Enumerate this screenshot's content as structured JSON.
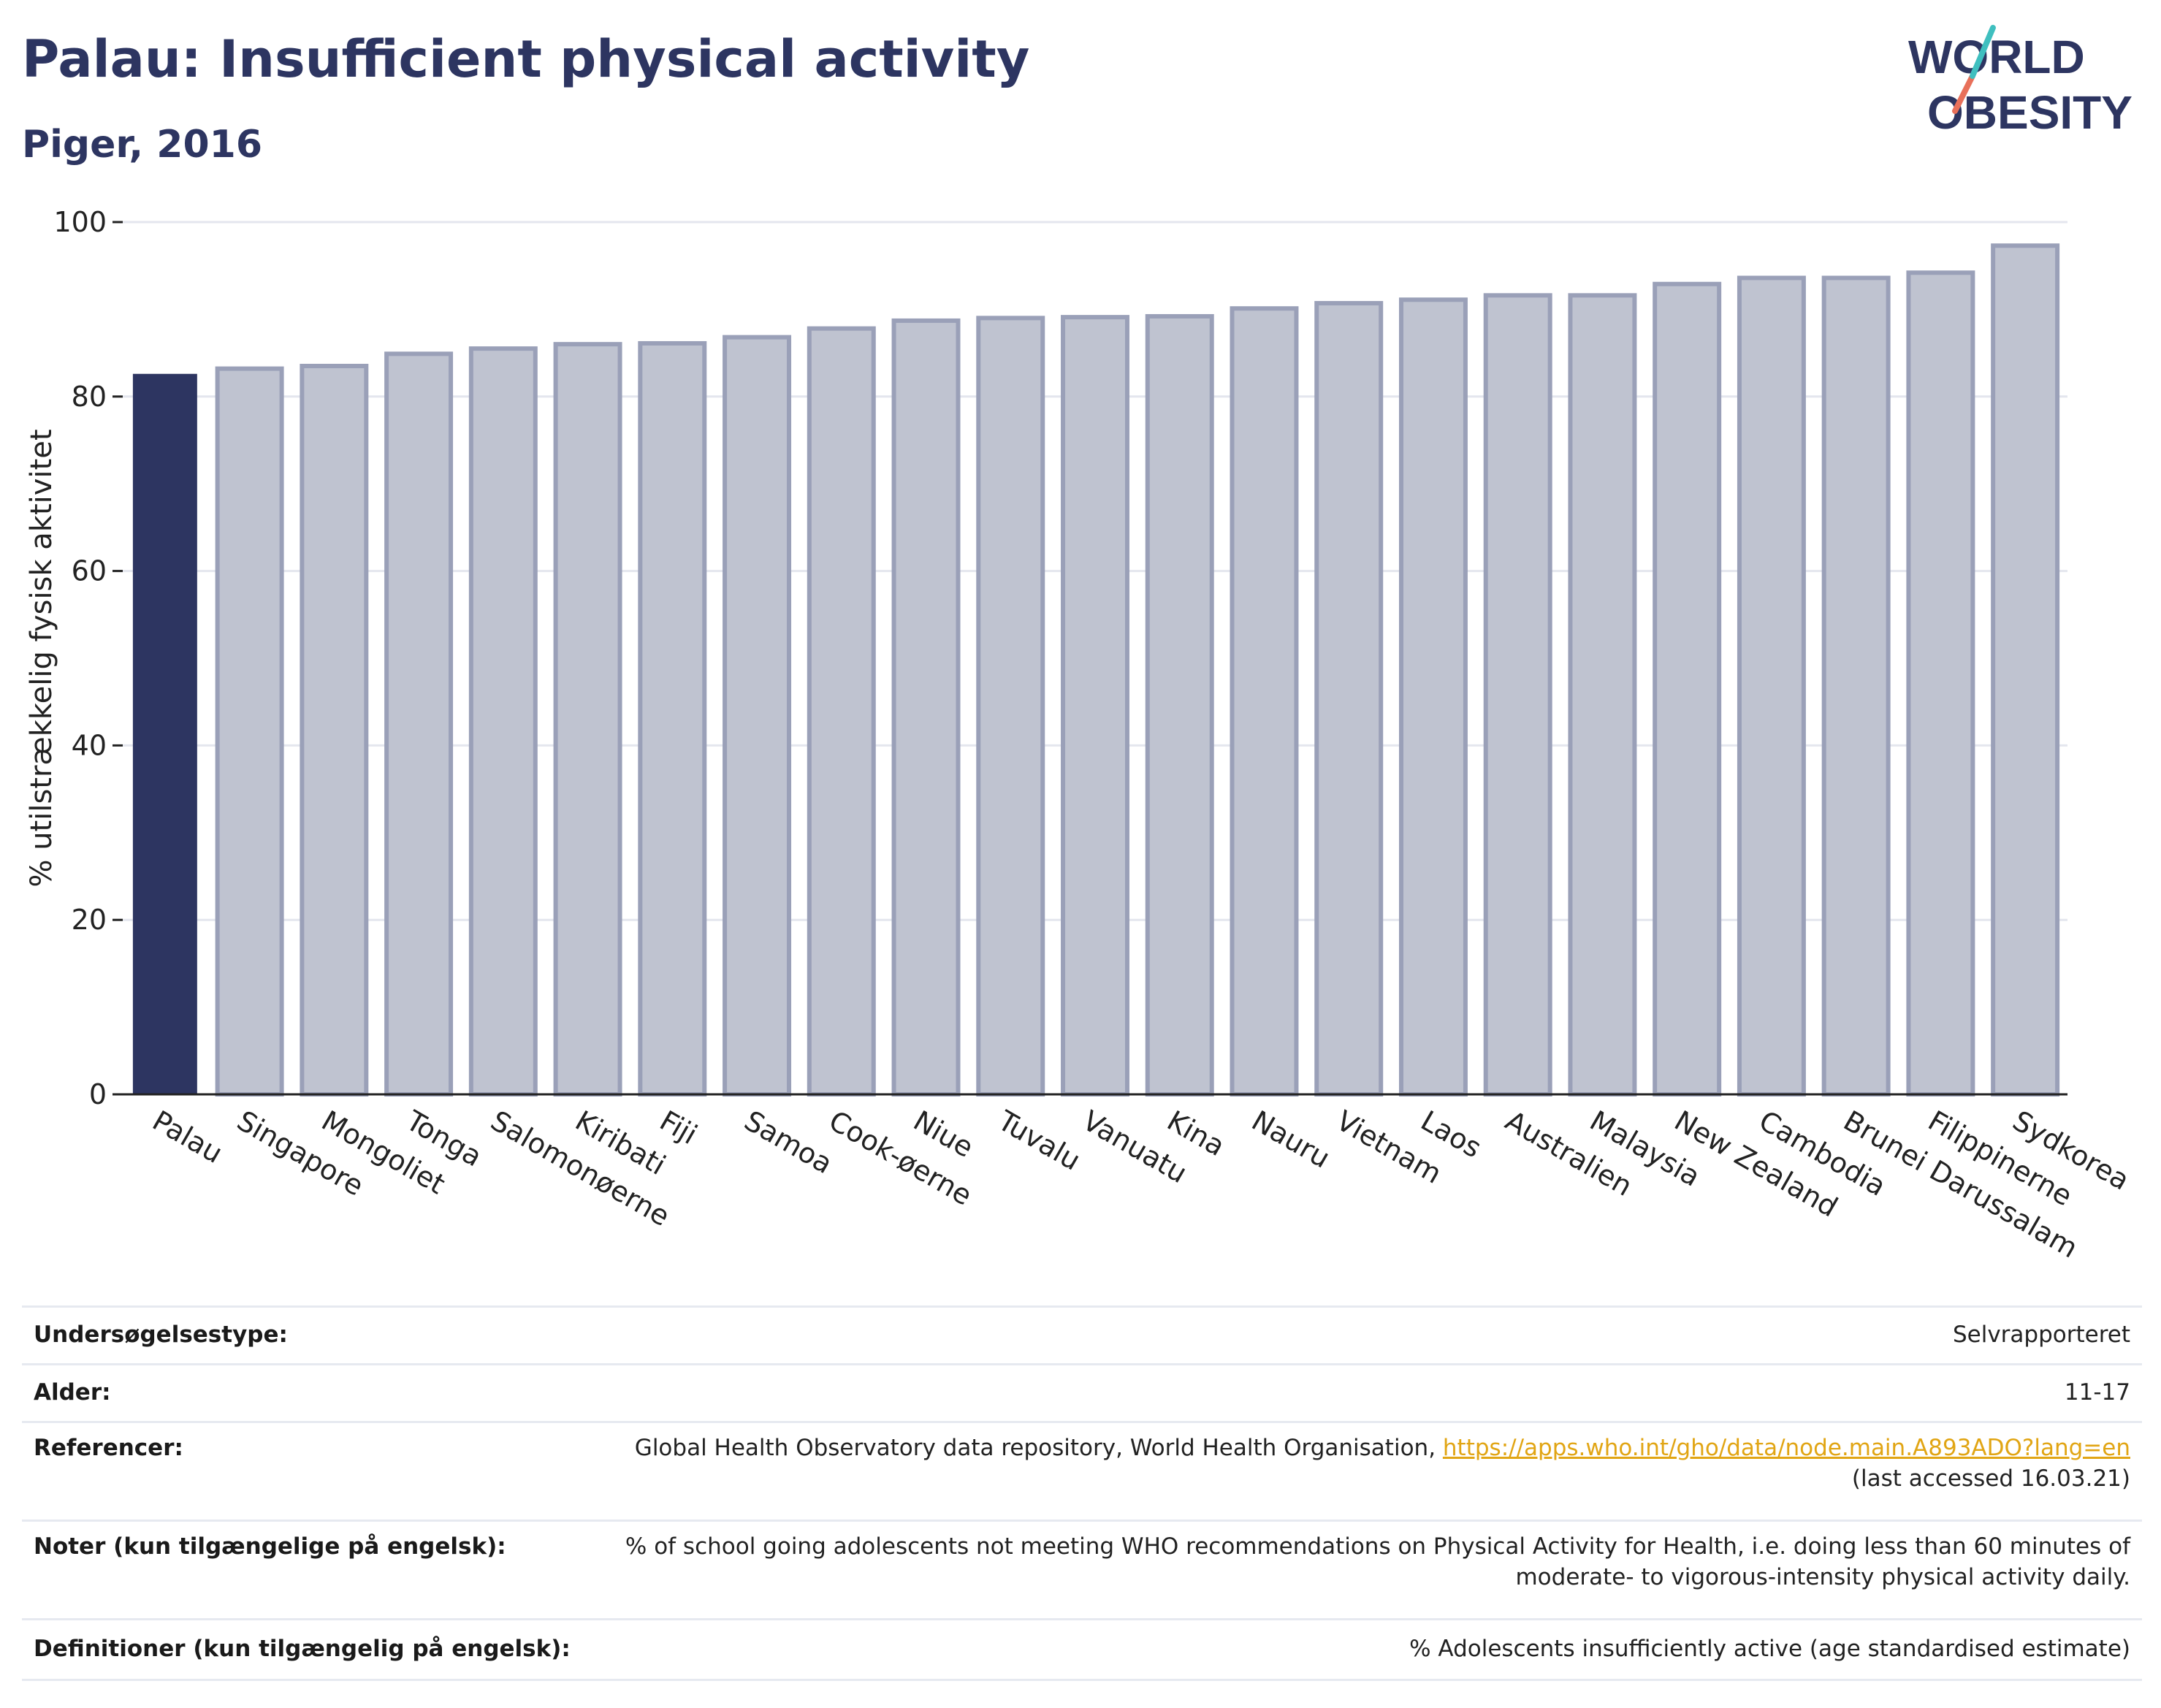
{
  "header": {
    "title": "Palau: Insufficient physical activity",
    "subtitle": "Piger, 2016"
  },
  "logo": {
    "line1": "WORLD",
    "line2": "OBESITY",
    "colors": {
      "text": "#2d3561",
      "slash_teal": "#3fbfbf",
      "slash_coral": "#e8705a"
    }
  },
  "chart_data": {
    "type": "bar",
    "title": "",
    "xlabel": "",
    "ylabel": "% utilstrækkelig fysisk aktivitet",
    "ylim": [
      0,
      100
    ],
    "yticks": [
      0,
      20,
      40,
      60,
      80,
      100
    ],
    "grid": true,
    "highlight": "Palau",
    "colors": {
      "highlight": "#2d3561",
      "other": "#bfc3d0",
      "other_border": "#9aa0b8"
    },
    "categories": [
      "Palau",
      "Singapore",
      "Mongoliet",
      "Tonga",
      "Salomonøerne",
      "Kiribati",
      "Fiji",
      "Samoa",
      "Cook-øerne",
      "Niue",
      "Tuvalu",
      "Vanuatu",
      "Kina",
      "Nauru",
      "Vietnam",
      "Laos",
      "Australien",
      "Malaysia",
      "New Zealand",
      "Cambodia",
      "Brunei Darussalam",
      "Filippinerne",
      "Sydkorea"
    ],
    "values": [
      82.6,
      83.2,
      83.5,
      84.9,
      85.5,
      86.0,
      86.1,
      86.8,
      87.8,
      88.7,
      89.0,
      89.1,
      89.2,
      90.1,
      90.7,
      91.1,
      91.6,
      91.6,
      92.9,
      93.6,
      93.6,
      94.2,
      97.3
    ]
  },
  "info": {
    "survey_type_label": "Undersøgelsestype:",
    "survey_type_value": "Selvrapporteret",
    "age_label": "Alder:",
    "age_value": "11-17",
    "references_label": "Referencer:",
    "references_text": "Global Health Observatory data repository, World Health Organisation, ",
    "references_link": "https://apps.who.int/gho/data/node.main.A893ADO?lang=en",
    "references_accessed": "(last accessed 16.03.21)",
    "notes_label": "Noter (kun tilgængelige på engelsk):",
    "notes_line1": "% of school going adolescents not meeting WHO recommendations on Physical Activity for Health, i.e. doing less than 60 minutes of",
    "notes_line2": "moderate- to vigorous-intensity physical activity daily.",
    "definitions_label": "Definitioner (kun tilgængelig på engelsk):",
    "definitions_value": "% Adolescents insufficiently active (age standardised estimate)"
  }
}
